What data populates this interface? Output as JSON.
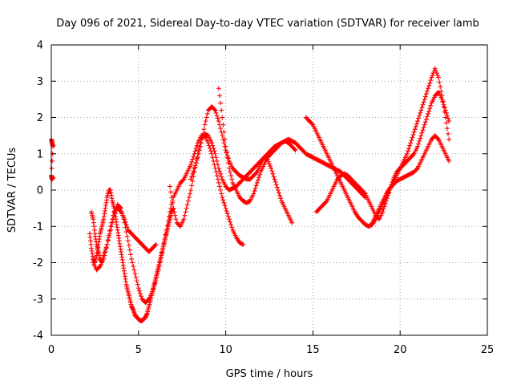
{
  "chart_data": {
    "type": "scatter",
    "title": "Day 096 of 2021, Sidereal Day-to-day VTEC variation (SDTVAR) for receiver lamb",
    "xlabel": "GPS time / hours",
    "ylabel": "SDTVAR / TECUs",
    "xlim": [
      0,
      25
    ],
    "ylim": [
      -4,
      4
    ],
    "xticks": [
      "0",
      "5",
      "10",
      "15",
      "20",
      "25"
    ],
    "yticks": [
      "-4",
      "-3",
      "-2",
      "-1",
      "0",
      "1",
      "2",
      "3",
      "4"
    ],
    "grid": true,
    "marker": "+",
    "color": "#ff0000",
    "series": [
      {
        "x": [
          0.0,
          0.05,
          0.1,
          0.0,
          0.05,
          0.1
        ],
        "y": [
          1.4,
          1.3,
          1.2,
          0.4,
          0.3,
          0.35
        ]
      },
      {
        "x": [
          2.2,
          2.3,
          2.4,
          2.5,
          2.6,
          2.7,
          2.8,
          2.9,
          3.0,
          3.1,
          3.2,
          3.3,
          3.4,
          3.5,
          3.6,
          3.7,
          3.8,
          3.9,
          4.0,
          4.1,
          4.2,
          4.3,
          4.4,
          4.5,
          4.6,
          4.7,
          4.8,
          4.9,
          5.0,
          5.1,
          5.2,
          5.3,
          5.4,
          5.5,
          5.6,
          5.7,
          5.8,
          5.9,
          6.0,
          6.1,
          6.2,
          6.3,
          6.4,
          6.5,
          6.6,
          6.7,
          6.8,
          6.9,
          7.0
        ],
        "y": [
          -1.2,
          -1.6,
          -1.9,
          -2.0,
          -1.8,
          -1.5,
          -1.2,
          -1.0,
          -0.8,
          -0.5,
          -0.2,
          0.0,
          0.0,
          -0.3,
          -0.5,
          -0.8,
          -1.1,
          -1.4,
          -1.7,
          -2.0,
          -2.3,
          -2.6,
          -2.8,
          -3.0,
          -3.2,
          -3.3,
          -3.45,
          -3.5,
          -3.55,
          -3.6,
          -3.6,
          -3.55,
          -3.5,
          -3.4,
          -3.2,
          -3.0,
          -2.8,
          -2.6,
          -2.4,
          -2.2,
          -2.0,
          -1.8,
          -1.6,
          -1.4,
          -1.2,
          -1.0,
          -0.8,
          -0.6,
          -0.5
        ]
      },
      {
        "x": [
          2.3,
          2.4,
          2.5,
          2.6,
          2.7,
          2.8,
          2.9,
          3.0,
          3.2,
          3.4,
          3.6,
          3.8,
          4.0,
          4.2,
          4.4,
          4.6,
          4.8,
          5.0,
          5.2,
          5.4,
          5.6,
          5.8,
          6.0,
          6.2,
          6.4,
          6.6,
          6.8,
          7.0,
          7.2,
          7.4,
          7.6,
          7.8,
          8.0,
          8.2,
          8.4,
          8.6,
          8.8,
          9.0,
          9.2,
          9.4,
          9.6,
          9.8,
          10.0,
          10.2,
          10.4,
          10.6,
          10.8,
          11.0
        ],
        "y": [
          -0.6,
          -0.8,
          -1.2,
          -1.5,
          -1.7,
          -1.9,
          -2.0,
          -1.8,
          -1.5,
          -1.1,
          -0.7,
          -0.4,
          -0.5,
          -0.9,
          -1.4,
          -1.9,
          -2.3,
          -2.7,
          -3.0,
          -3.1,
          -3.0,
          -2.8,
          -2.5,
          -2.1,
          -1.6,
          -1.1,
          -0.6,
          -0.2,
          0.0,
          0.2,
          0.3,
          0.5,
          0.7,
          1.0,
          1.3,
          1.5,
          1.5,
          1.3,
          1.0,
          0.6,
          0.2,
          -0.2,
          -0.5,
          -0.8,
          -1.1,
          -1.3,
          -1.45,
          -1.5
        ]
      },
      {
        "x": [
          2.4,
          2.6,
          2.8,
          3.0,
          3.2,
          3.4,
          3.6,
          3.8,
          4.0,
          4.2,
          4.4,
          4.6,
          4.8,
          5.0,
          5.2,
          5.4,
          5.6,
          5.8,
          6.0
        ],
        "y": [
          -2.0,
          -2.2,
          -2.1,
          -1.9,
          -1.5,
          -1.0,
          -0.6,
          -0.5,
          -0.6,
          -0.8,
          -1.1,
          -1.2,
          -1.3,
          -1.4,
          -1.5,
          -1.6,
          -1.7,
          -1.6,
          -1.5
        ]
      },
      {
        "x": [
          6.8,
          7.0,
          7.2,
          7.4,
          7.6,
          7.8,
          8.0,
          8.2,
          8.4,
          8.6,
          8.8,
          9.0,
          9.2,
          9.4,
          9.6,
          9.8,
          10.0,
          10.2,
          10.4,
          10.6,
          10.8,
          11.0,
          11.2,
          11.4,
          11.6,
          11.8,
          12.0,
          12.2,
          12.4,
          12.6,
          12.8,
          13.0,
          13.2,
          13.4,
          13.6,
          13.8
        ],
        "y": [
          0.1,
          -0.5,
          -0.9,
          -1.0,
          -0.8,
          -0.4,
          0.0,
          0.5,
          1.0,
          1.4,
          1.55,
          1.5,
          1.3,
          1.0,
          0.6,
          0.3,
          0.1,
          0.0,
          0.05,
          0.1,
          0.2,
          0.3,
          0.4,
          0.5,
          0.6,
          0.7,
          0.8,
          0.9,
          0.85,
          0.6,
          0.3,
          0.0,
          -0.3,
          -0.5,
          -0.7,
          -0.9
        ]
      },
      {
        "x": [
          8.0,
          8.2,
          8.4,
          8.6,
          8.8,
          9.0,
          9.2,
          9.4,
          9.6,
          9.8,
          10.0,
          10.2,
          10.4,
          10.6,
          10.8,
          11.0,
          11.2,
          11.4,
          11.6,
          11.8,
          12.0,
          12.2,
          12.4,
          12.6,
          12.8,
          13.0,
          13.2,
          13.4,
          13.6,
          13.8,
          14.0
        ],
        "y": [
          0.3,
          0.6,
          0.9,
          1.3,
          1.8,
          2.2,
          2.3,
          2.2,
          1.9,
          1.5,
          1.1,
          0.8,
          0.6,
          0.5,
          0.4,
          0.35,
          0.3,
          0.3,
          0.4,
          0.5,
          0.7,
          0.9,
          1.0,
          1.1,
          1.2,
          1.25,
          1.3,
          1.35,
          1.3,
          1.2,
          1.1
        ]
      },
      {
        "x": [
          9.6,
          9.8,
          10.0,
          10.2,
          10.4,
          10.6,
          10.8,
          11.0,
          11.2,
          11.4,
          11.6,
          11.8,
          12.0,
          12.2,
          12.4,
          12.6,
          12.8,
          13.0,
          13.2,
          13.4,
          13.6,
          13.8,
          14.0,
          14.2,
          14.4,
          14.6,
          14.8,
          15.0,
          15.2,
          15.4,
          15.6,
          15.8,
          16.0,
          16.2,
          16.4,
          16.6,
          16.8,
          17.0,
          17.2,
          17.4,
          17.6,
          17.8,
          18.0
        ],
        "y": [
          2.8,
          2.0,
          1.2,
          0.6,
          0.2,
          0.0,
          -0.2,
          -0.3,
          -0.35,
          -0.3,
          -0.1,
          0.2,
          0.5,
          0.7,
          0.9,
          1.0,
          1.1,
          1.2,
          1.3,
          1.35,
          1.4,
          1.35,
          1.3,
          1.2,
          1.1,
          1.0,
          0.95,
          0.9,
          0.85,
          0.8,
          0.75,
          0.7,
          0.65,
          0.6,
          0.55,
          0.5,
          0.4,
          0.3,
          0.2,
          0.1,
          0.0,
          -0.1,
          -0.2
        ]
      },
      {
        "x": [
          14.6,
          14.8,
          15.0,
          15.2,
          15.4,
          15.6,
          15.8,
          16.0,
          16.2,
          16.4,
          16.6,
          16.8,
          17.0,
          17.2,
          17.4,
          17.6,
          17.8,
          18.0,
          18.2,
          18.4,
          18.6,
          18.8,
          19.0,
          19.2,
          19.4,
          19.6,
          19.8,
          20.0,
          20.2,
          20.4,
          20.6,
          20.8,
          21.0,
          21.2,
          21.4,
          21.6,
          21.8,
          22.0,
          22.2,
          22.4,
          22.6,
          22.8
        ],
        "y": [
          2.0,
          1.9,
          1.8,
          1.6,
          1.4,
          1.2,
          1.0,
          0.8,
          0.6,
          0.4,
          0.2,
          0.0,
          -0.2,
          -0.4,
          -0.6,
          -0.75,
          -0.85,
          -0.95,
          -1.0,
          -0.95,
          -0.8,
          -0.6,
          -0.4,
          -0.2,
          0.0,
          0.2,
          0.4,
          0.6,
          0.8,
          1.0,
          1.3,
          1.6,
          1.9,
          2.2,
          2.5,
          2.8,
          3.1,
          3.35,
          3.1,
          2.6,
          2.0,
          1.4
        ]
      },
      {
        "x": [
          15.2,
          15.4,
          15.6,
          15.8,
          16.0,
          16.2,
          16.4,
          16.6,
          16.8,
          17.0,
          17.2,
          17.4,
          17.6,
          17.8,
          18.0,
          18.2,
          18.4,
          18.6,
          18.8,
          19.0,
          19.2,
          19.4,
          19.6,
          19.8,
          20.0,
          20.2,
          20.4,
          20.6,
          20.8,
          21.0,
          21.2,
          21.4,
          21.6,
          21.8,
          22.0,
          22.2,
          22.4,
          22.6,
          22.8
        ],
        "y": [
          -0.6,
          -0.5,
          -0.4,
          -0.3,
          -0.1,
          0.1,
          0.3,
          0.4,
          0.45,
          0.4,
          0.3,
          0.2,
          0.1,
          0.0,
          -0.1,
          -0.3,
          -0.5,
          -0.7,
          -0.8,
          -0.6,
          -0.3,
          0.0,
          0.3,
          0.5,
          0.6,
          0.7,
          0.8,
          0.9,
          1.0,
          1.2,
          1.5,
          1.8,
          2.1,
          2.4,
          2.6,
          2.7,
          2.5,
          2.2,
          1.9
        ]
      },
      {
        "x": [
          18.4,
          18.6,
          18.8,
          19.0,
          19.2,
          19.4,
          19.6,
          19.8,
          20.0,
          20.2,
          20.4,
          20.6,
          20.8,
          21.0,
          21.2,
          21.4,
          21.6,
          21.8,
          22.0,
          22.2,
          22.4,
          22.6,
          22.8
        ],
        "y": [
          -0.9,
          -0.7,
          -0.5,
          -0.3,
          -0.1,
          0.05,
          0.15,
          0.25,
          0.3,
          0.35,
          0.4,
          0.45,
          0.5,
          0.6,
          0.8,
          1.0,
          1.2,
          1.4,
          1.5,
          1.4,
          1.2,
          1.0,
          0.8
        ]
      }
    ]
  }
}
